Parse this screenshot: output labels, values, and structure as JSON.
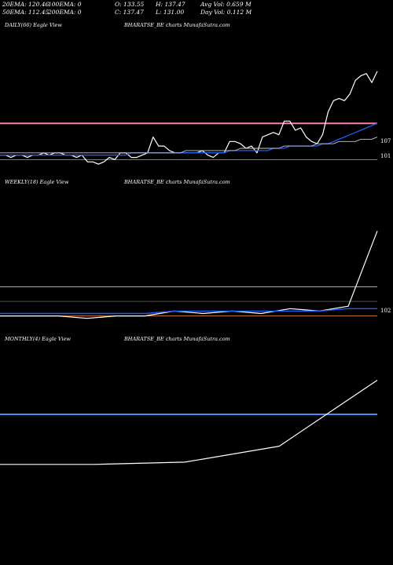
{
  "header": {
    "row1": [
      "20EMA: 120.46",
      "100EMA: 0",
      "O: 133.55",
      "H: 137.47",
      "Avg Vol: 0.659 M"
    ],
    "row2": [
      "50EMA: 112.45",
      "200EMA: 0",
      "C: 137.47",
      "L: 131.00",
      "Day Vol: 0.112  M"
    ]
  },
  "panels": {
    "daily": {
      "label": "DAILY(66) Eagle   View",
      "source": "BHARATSE_BE charts MunafaSutra.com",
      "price_labels": [
        "107",
        "101"
      ]
    },
    "weekly": {
      "label": "WEEKLY(18) Eagle   View",
      "source": "BHARATSE_BE charts MunafaSutra.com",
      "price_labels": [
        "102"
      ]
    },
    "monthly": {
      "label": "MONTHLY(4) Eagle   View",
      "source": "BHARATSE_BE charts MunafaSutra.com",
      "price_labels": []
    }
  },
  "colors": {
    "price": "#ffffff",
    "ema_short": "#1e5bff",
    "ema_long": "#c8c8c8",
    "resistance": "#ff7fa0",
    "support": "#c77a3a",
    "monthly_level": "#4a8ef5",
    "background": "#000000"
  },
  "chart_data": [
    {
      "type": "line",
      "title": "DAILY(66) Eagle View",
      "series": [
        {
          "values": [
            103,
            103,
            102,
            103,
            103,
            102,
            103,
            103,
            104,
            103,
            104,
            104,
            103,
            103,
            102,
            103,
            100,
            100,
            99,
            100,
            102,
            101,
            104,
            104,
            102,
            102,
            103,
            104,
            111,
            107,
            107,
            105,
            104,
            104,
            104,
            104,
            104,
            105,
            103,
            102,
            104,
            104,
            109,
            109,
            108,
            106,
            107,
            104,
            111,
            112,
            113,
            112,
            118,
            118,
            114,
            115,
            111,
            109,
            108,
            112,
            122,
            127,
            128,
            127,
            130,
            136,
            138,
            139,
            135,
            140
          ]
        },
        {
          "values": [
            103,
            103,
            103,
            103,
            103,
            103,
            103,
            103,
            103,
            103,
            103,
            103,
            103,
            103,
            103,
            103,
            103,
            103,
            103,
            103,
            103,
            103,
            103,
            103,
            104,
            104,
            104,
            104,
            104,
            104,
            104,
            104,
            104,
            104,
            104,
            104,
            104,
            104,
            104,
            104,
            104,
            104,
            105,
            105,
            105,
            105,
            105,
            105,
            105,
            105,
            106,
            106,
            106,
            107,
            107,
            107,
            107,
            107,
            107,
            108,
            108,
            109,
            110,
            111,
            112,
            113,
            114,
            115,
            116,
            117
          ]
        },
        {
          "values": [
            104,
            104,
            104,
            104,
            104,
            104,
            104,
            104,
            104,
            104,
            104,
            104,
            104,
            104,
            104,
            104,
            104,
            104,
            104,
            104,
            104,
            104,
            104,
            104,
            104,
            104,
            104,
            104,
            104,
            104,
            104,
            104,
            104,
            104,
            105,
            105,
            105,
            105,
            105,
            105,
            105,
            105,
            105,
            105,
            106,
            106,
            106,
            106,
            106,
            106,
            106,
            106,
            107,
            107,
            107,
            107,
            107,
            107,
            108,
            108,
            108,
            108,
            109,
            109,
            109,
            109,
            110,
            110,
            110,
            111
          ]
        }
      ],
      "levels": [
        117,
        101
      ]
    },
    {
      "type": "line",
      "title": "WEEKLY(18) Eagle View",
      "series": [
        {
          "values": [
            102,
            102,
            102,
            101,
            102,
            102,
            104,
            103,
            104,
            103,
            105,
            104,
            106,
            137
          ]
        },
        {
          "values": [
            103,
            103,
            103,
            103,
            103,
            103,
            104,
            104,
            104,
            104,
            104,
            104,
            105,
            105
          ]
        }
      ],
      "levels": [
        114,
        108,
        102
      ]
    },
    {
      "type": "line",
      "title": "MONTHLY(4) Eagle View",
      "series": [
        {
          "values": [
            100,
            100,
            101,
            108,
            137
          ]
        }
      ],
      "levels": [
        122
      ]
    }
  ]
}
